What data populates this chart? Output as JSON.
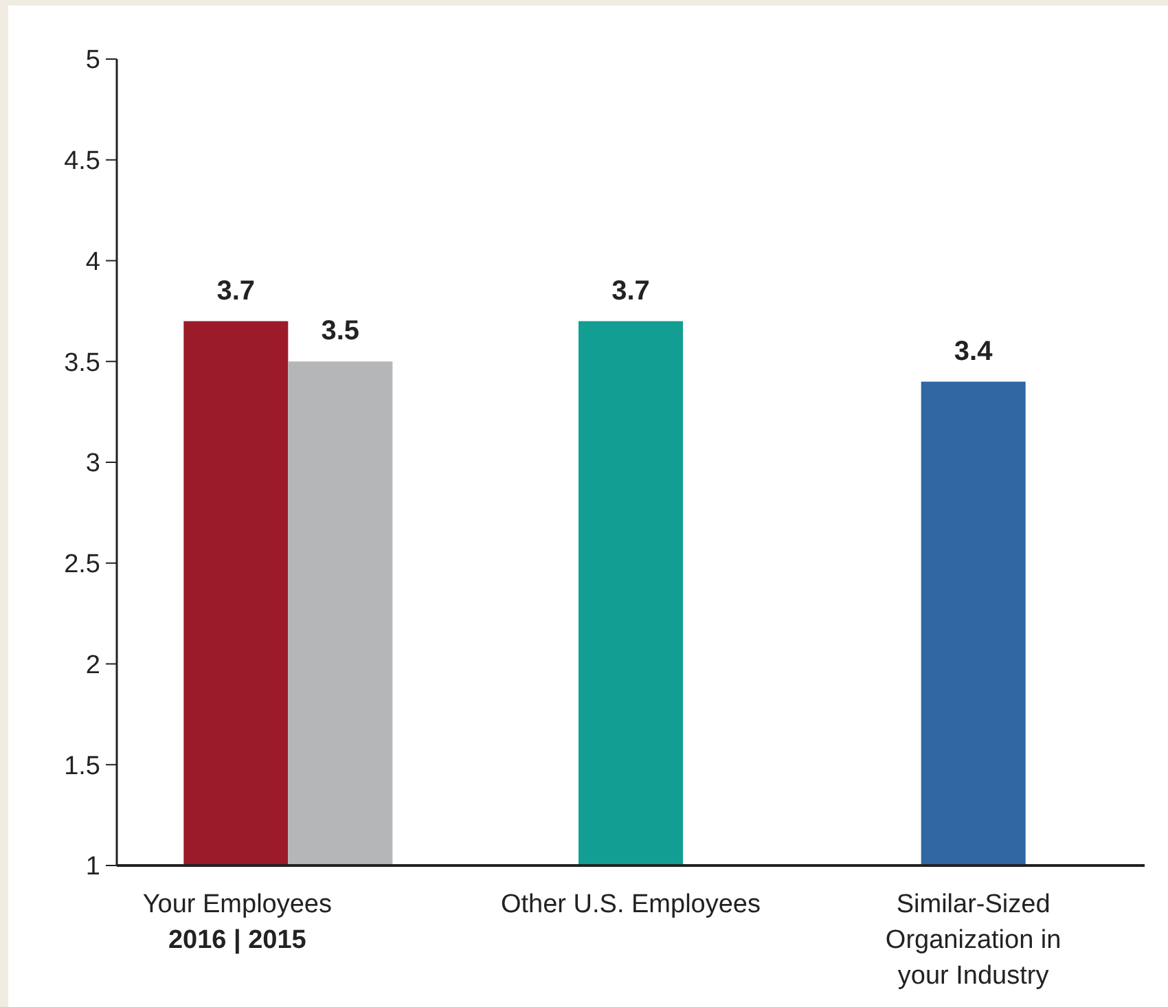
{
  "chart_data": {
    "type": "bar",
    "categories": [
      "Your Employees\n2016 | 2015",
      "Other U.S. Employees",
      "Similar-Sized\nOrganization in\nyour Industry"
    ],
    "series": [
      {
        "colors": [
          "#9b1b2a",
          "#129e92",
          "#2f68a3"
        ],
        "values": [
          3.7,
          3.7,
          3.4
        ]
      },
      {
        "color": "#b5b6b8",
        "values": [
          3.5,
          null,
          null
        ]
      }
    ],
    "ylim": [
      1,
      5
    ],
    "yticks": [
      1,
      1.5,
      2,
      2.5,
      3,
      3.5,
      4,
      4.5,
      5
    ],
    "data_labels": true
  }
}
